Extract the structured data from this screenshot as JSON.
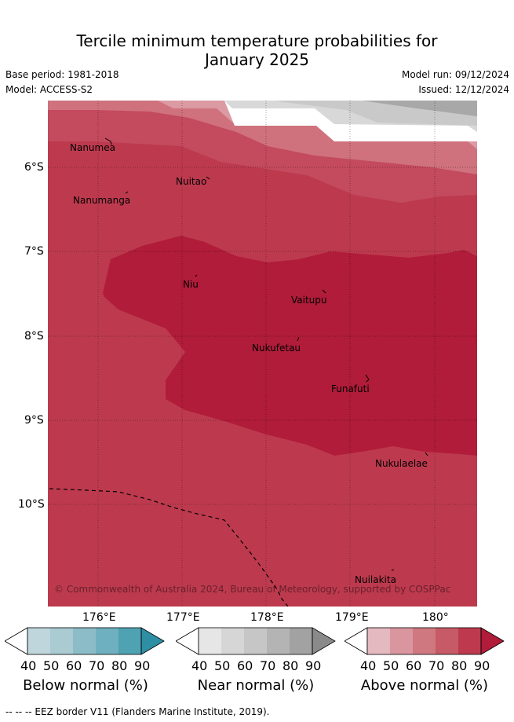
{
  "title_line1": "Tercile minimum temperature probabilities for",
  "title_line2": "January 2025",
  "base_period": "Base period: 1981-2018",
  "model": "Model: ACCESS-S2",
  "model_run": "Model run: 09/12/2024",
  "issued": "Issued: 12/12/2024",
  "copyright": "© Commonwealth of Australia 2024, Bureau of Meteorology, supported by COSPPac",
  "lon_ticks": [
    "176°E",
    "177°E",
    "178°E",
    "179°E",
    "180°"
  ],
  "lat_ticks": [
    "6°S",
    "7°S",
    "8°S",
    "9°S",
    "10°S"
  ],
  "places": [
    "Nanumea",
    "Nuitao",
    "Nanumanga",
    "Niu",
    "Vaitupu",
    "Nukufetau",
    "Funafuti",
    "Nukulaelae",
    "Nuilakita"
  ],
  "colorbars": [
    {
      "label": "Below normal (%)",
      "ticks": [
        "40",
        "50",
        "60",
        "70",
        "80",
        "90"
      ],
      "colors": [
        "#bfd6dc",
        "#a9cbd1",
        "#8cbcc8",
        "#6eb0bf",
        "#4ea2b2",
        "#2e8ea3"
      ]
    },
    {
      "label": "Near normal (%)",
      "ticks": [
        "40",
        "50",
        "60",
        "70",
        "80",
        "90"
      ],
      "colors": [
        "#e6e6e6",
        "#d6d6d6",
        "#c6c6c6",
        "#b4b4b4",
        "#a2a2a2",
        "#8a8a8a"
      ]
    },
    {
      "label": "Above normal (%)",
      "ticks": [
        "40",
        "50",
        "60",
        "70",
        "80",
        "90"
      ],
      "colors": [
        "#e4b9bf",
        "#d9969f",
        "#cf7880",
        "#c65a66",
        "#bd3a4e",
        "#b01c39"
      ]
    }
  ],
  "footnote": "--  --  -- EEZ border V11 (Flanders Marine Institute, 2019)."
}
